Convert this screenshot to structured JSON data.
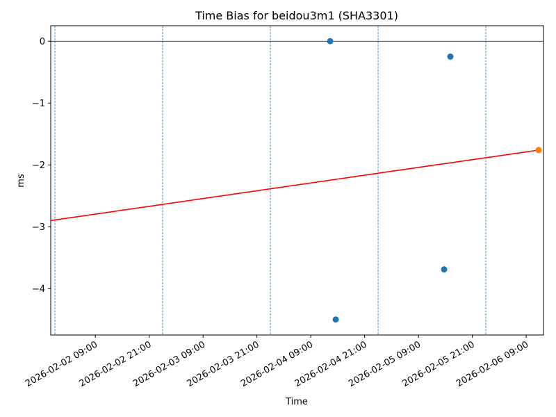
{
  "chart_data": {
    "type": "scatter",
    "title": "Time Bias for beidou3m1 (SHA3301)",
    "x_label": "Time",
    "y_label": "ms",
    "xlim": [
      "2026-02-01 23:04",
      "2026-02-06 12:51"
    ],
    "xticks": [
      "2026-02-02 09:00",
      "2026-02-02 21:00",
      "2026-02-03 09:00",
      "2026-02-03 21:00",
      "2026-02-04 09:00",
      "2026-02-04 21:00",
      "2026-02-05 09:00",
      "2026-02-05 21:00",
      "2026-02-06 09:00"
    ],
    "ylim": [
      -4.75,
      0.25
    ],
    "yticks": [
      {
        "value": -4,
        "label": "−4"
      },
      {
        "value": -3,
        "label": "−3"
      },
      {
        "value": -2,
        "label": "−2"
      },
      {
        "value": -1,
        "label": "−1"
      },
      0
    ],
    "hline": 0,
    "hline_color": "#000000",
    "vlines": [
      "2026-02-02 00:00",
      "2026-02-03 00:00",
      "2026-02-04 00:00",
      "2026-02-05 00:00",
      "2026-02-06 00:00"
    ],
    "vline_color": "#1f77b4",
    "series": [
      {
        "type": "scatter",
        "color": "#1f77b4",
        "x": [
          "2026-02-04 13:19",
          "2026-02-04 14:34",
          "2026-02-05 14:43",
          "2026-02-05 16:06"
        ],
        "values": [
          0,
          -4.5,
          -3.69,
          -0.25
        ]
      },
      {
        "type": "scatter",
        "color": "#ff7f0e",
        "x": [
          "2026-02-06 11:47"
        ],
        "values": [
          -1.76
        ]
      },
      {
        "type": "line",
        "color": "#ff0000",
        "x": [
          "2026-02-01 23:04",
          "2026-02-06 11:47"
        ],
        "values": [
          -2.9,
          -1.76
        ]
      }
    ]
  }
}
